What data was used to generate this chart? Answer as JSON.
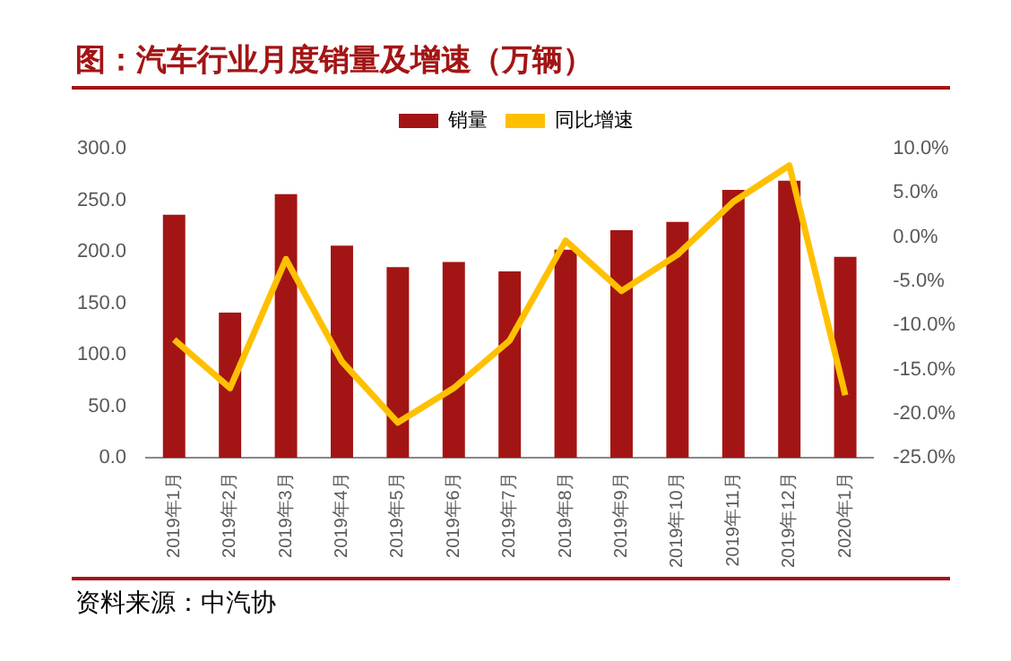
{
  "chart_data": {
    "type": "bar",
    "title": "图：汽车行业月度销量及增速（万辆）",
    "categories": [
      "2019年1月",
      "2019年2月",
      "2019年3月",
      "2019年4月",
      "2019年5月",
      "2019年6月",
      "2019年7月",
      "2019年8月",
      "2019年9月",
      "2019年10月",
      "2019年11月",
      "2019年12月",
      "2020年1月"
    ],
    "series": [
      {
        "name": "销量",
        "color": "#a31515",
        "values": [
          236,
          141,
          256,
          206,
          185,
          190,
          181,
          202,
          221,
          229,
          260,
          269,
          195
        ]
      },
      {
        "name": "同比增速",
        "type": "line",
        "axis": "y2",
        "color": "#ffc000",
        "values": [
          -11.6,
          -17.1,
          -2.5,
          -14.1,
          -21.0,
          -17.1,
          -11.7,
          -0.4,
          -6.1,
          -2.0,
          4.0,
          8.1,
          -17.9
        ]
      }
    ],
    "ylim": [
      0,
      300
    ],
    "yticks": [
      {
        "value": 0,
        "label": "0.0"
      },
      {
        "value": 50,
        "label": "50.0"
      },
      {
        "value": 100,
        "label": "100.0"
      },
      {
        "value": 150,
        "label": "150.0"
      },
      {
        "value": 200,
        "label": "200.0"
      },
      {
        "value": 250,
        "label": "250.0"
      },
      {
        "value": 300,
        "label": "300.0"
      }
    ],
    "y2lim": [
      -25,
      10
    ],
    "y2ticks": [
      {
        "value": -25,
        "label": "-25.0%"
      },
      {
        "value": -20,
        "label": "-20.0%"
      },
      {
        "value": -15,
        "label": "-15.0%"
      },
      {
        "value": -10,
        "label": "-10.0%"
      },
      {
        "value": -5,
        "label": "-5.0%"
      },
      {
        "value": 0,
        "label": "0.0%"
      },
      {
        "value": 5,
        "label": "5.0%"
      },
      {
        "value": 10,
        "label": "10.0%"
      }
    ],
    "legend": "top",
    "grid": false,
    "marker": "none",
    "annotations": [
      "资料来源：中汽协"
    ]
  }
}
